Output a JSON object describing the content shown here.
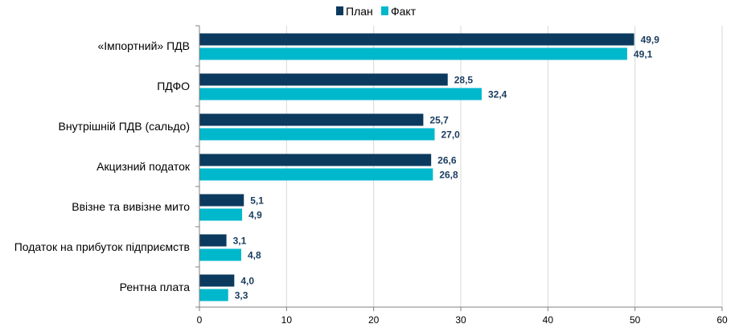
{
  "chart_data": {
    "type": "bar",
    "orientation": "horizontal",
    "categories": [
      "«Імпортний» ПДВ",
      "ПДФО",
      "Внутрішній ПДВ (сальдо)",
      "Акцизний податок",
      "Ввізне та вивізне мито",
      "Податок на прибуток підприємств",
      "Рентна плата"
    ],
    "series": [
      {
        "name": "План",
        "color": "#0b3a5e",
        "values": [
          49.9,
          28.5,
          25.7,
          26.6,
          5.1,
          3.1,
          4.0
        ],
        "labels": [
          "49,9",
          "28,5",
          "25,7",
          "26,6",
          "5,1",
          "3,1",
          "4,0"
        ]
      },
      {
        "name": "Факт",
        "color": "#00b8cc",
        "values": [
          49.1,
          32.4,
          27.0,
          26.8,
          4.9,
          4.8,
          3.3
        ],
        "labels": [
          "49,1",
          "32,4",
          "27,0",
          "26,8",
          "4,9",
          "4,8",
          "3,3"
        ]
      }
    ],
    "xlim": [
      0,
      60
    ],
    "xticks": [
      "0",
      "10",
      "20",
      "30",
      "40",
      "50",
      "60"
    ],
    "grid": true,
    "legend_position": "top-center",
    "title": "",
    "xlabel": "",
    "ylabel": ""
  }
}
